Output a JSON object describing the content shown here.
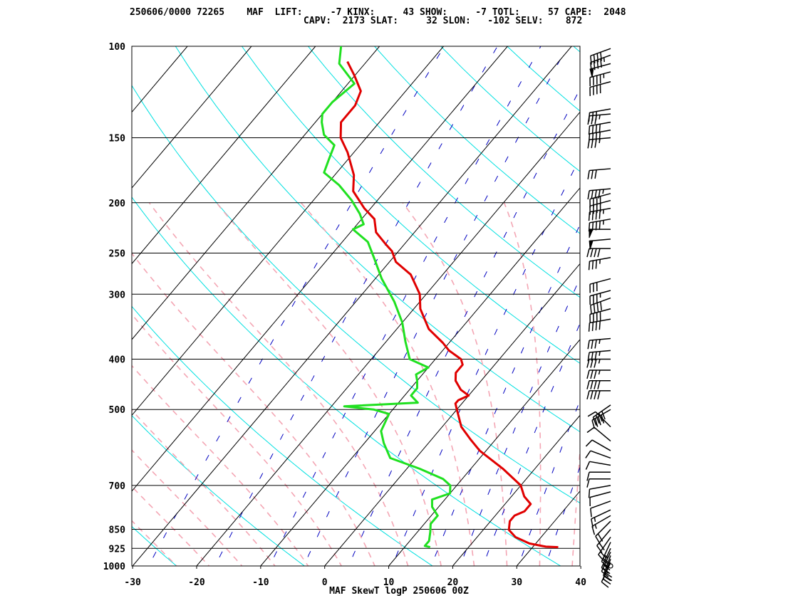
{
  "header": {
    "line1": "250606/0000 72265    MAF  LIFT:     -7 KINX:     43 SHOW:     -7 TOTL:     57 CAPE:  2048",
    "line2": "CAPV:  2173 SLAT:     32 SLON:   -102 SELV:    872"
  },
  "footer": "MAF SkewT logP 250606 00Z",
  "colors": {
    "temperature": "#e00000",
    "dewpoint": "#20e020",
    "dry_adiabat": "#00e0e0",
    "moist_adiabat": "#f4a6b4",
    "mixing_ratio": "#0000c0",
    "isotherm": "#000000",
    "isobar": "#000000",
    "wind_barb": "#000000"
  },
  "chart_data": {
    "type": "line",
    "title": "MAF SkewT logP 250606 00Z",
    "x_scale": "temperature (C), skewed",
    "y_scale": "log",
    "xlim": [
      -30,
      40
    ],
    "ylim": [
      1000,
      100
    ],
    "x_ticks": [
      "-30",
      "-20",
      "-10",
      "0",
      "10",
      "20",
      "30",
      "40"
    ],
    "y_ticks": [
      "100",
      "150",
      "200",
      "250",
      "300",
      "400",
      "500",
      "700",
      "850",
      "925",
      "1000"
    ],
    "pressure_levels": [
      100,
      150,
      200,
      250,
      300,
      400,
      500,
      700,
      850,
      925,
      1000
    ],
    "series": [
      {
        "kind": "temperature",
        "points": [
          [
            920,
            34
          ],
          [
            918,
            32
          ],
          [
            905,
            29
          ],
          [
            880,
            26
          ],
          [
            852,
            24
          ],
          [
            820,
            23
          ],
          [
            800,
            23
          ],
          [
            785,
            24
          ],
          [
            760,
            24
          ],
          [
            735,
            22
          ],
          [
            700,
            20
          ],
          [
            650,
            15
          ],
          [
            600,
            9
          ],
          [
            570,
            6
          ],
          [
            540,
            3
          ],
          [
            500,
            0
          ],
          [
            487,
            -1
          ],
          [
            480,
            -1
          ],
          [
            470,
            0
          ],
          [
            458,
            -2
          ],
          [
            440,
            -4
          ],
          [
            425,
            -5
          ],
          [
            410,
            -5
          ],
          [
            400,
            -6
          ],
          [
            385,
            -9
          ],
          [
            372,
            -11
          ],
          [
            350,
            -15
          ],
          [
            320,
            -19
          ],
          [
            300,
            -21
          ],
          [
            275,
            -25
          ],
          [
            260,
            -29
          ],
          [
            248,
            -31
          ],
          [
            240,
            -33
          ],
          [
            228,
            -36
          ],
          [
            215,
            -38
          ],
          [
            205,
            -41
          ],
          [
            190,
            -45
          ],
          [
            177,
            -47
          ],
          [
            160,
            -51
          ],
          [
            150,
            -54
          ],
          [
            140,
            -56
          ],
          [
            130,
            -56
          ],
          [
            122,
            -57
          ],
          [
            114,
            -60
          ],
          [
            107,
            -63
          ]
        ]
      },
      {
        "kind": "dewpoint",
        "points": [
          [
            920,
            14
          ],
          [
            915,
            13
          ],
          [
            895,
            13
          ],
          [
            860,
            12
          ],
          [
            830,
            11
          ],
          [
            800,
            11
          ],
          [
            770,
            9
          ],
          [
            745,
            8
          ],
          [
            725,
            10
          ],
          [
            700,
            9
          ],
          [
            680,
            7
          ],
          [
            650,
            2
          ],
          [
            620,
            -4
          ],
          [
            580,
            -7
          ],
          [
            550,
            -9
          ],
          [
            510,
            -10
          ],
          [
            500,
            -13
          ],
          [
            493,
            -18
          ],
          [
            485,
            -7
          ],
          [
            470,
            -9
          ],
          [
            455,
            -9
          ],
          [
            440,
            -10
          ],
          [
            428,
            -11
          ],
          [
            415,
            -10
          ],
          [
            400,
            -14
          ],
          [
            370,
            -17
          ],
          [
            340,
            -20
          ],
          [
            310,
            -24
          ],
          [
            280,
            -29
          ],
          [
            255,
            -33
          ],
          [
            238,
            -36
          ],
          [
            225,
            -40
          ],
          [
            220,
            -39
          ],
          [
            210,
            -41
          ],
          [
            198,
            -44
          ],
          [
            185,
            -48
          ],
          [
            175,
            -52
          ],
          [
            165,
            -53
          ],
          [
            155,
            -54
          ],
          [
            148,
            -57
          ],
          [
            140,
            -59
          ],
          [
            135,
            -60
          ],
          [
            128,
            -60
          ],
          [
            118,
            -59
          ],
          [
            108,
            -64
          ],
          [
            100,
            -66
          ]
        ]
      }
    ],
    "wind_barbs": [
      [
        1000,
        0,
        0
      ],
      [
        985,
        205,
        15
      ],
      [
        970,
        200,
        20
      ],
      [
        955,
        200,
        20
      ],
      [
        940,
        205,
        25
      ],
      [
        925,
        205,
        25
      ],
      [
        900,
        205,
        25
      ],
      [
        880,
        215,
        20
      ],
      [
        850,
        220,
        20
      ],
      [
        820,
        225,
        20
      ],
      [
        800,
        240,
        15
      ],
      [
        780,
        245,
        15
      ],
      [
        750,
        250,
        10
      ],
      [
        720,
        255,
        10
      ],
      [
        700,
        260,
        10
      ],
      [
        680,
        270,
        10
      ],
      [
        660,
        270,
        10
      ],
      [
        640,
        280,
        10
      ],
      [
        620,
        290,
        10
      ],
      [
        600,
        300,
        10
      ],
      [
        575,
        310,
        10
      ],
      [
        540,
        315,
        10
      ],
      [
        500,
        240,
        40
      ],
      [
        490,
        235,
        40
      ],
      [
        460,
        270,
        40
      ],
      [
        440,
        270,
        40
      ],
      [
        420,
        270,
        35
      ],
      [
        400,
        270,
        35
      ],
      [
        385,
        265,
        35
      ],
      [
        365,
        265,
        35
      ],
      [
        335,
        260,
        40
      ],
      [
        320,
        255,
        40
      ],
      [
        305,
        250,
        40
      ],
      [
        295,
        255,
        35
      ],
      [
        280,
        255,
        30
      ],
      [
        255,
        260,
        35
      ],
      [
        245,
        270,
        40
      ],
      [
        235,
        265,
        50
      ],
      [
        225,
        270,
        50
      ],
      [
        215,
        260,
        45
      ],
      [
        205,
        260,
        45
      ],
      [
        198,
        255,
        40
      ],
      [
        192,
        255,
        40
      ],
      [
        188,
        265,
        45
      ],
      [
        172,
        265,
        30
      ],
      [
        150,
        265,
        35
      ],
      [
        145,
        260,
        40
      ],
      [
        140,
        260,
        40
      ],
      [
        135,
        265,
        35
      ],
      [
        132,
        260,
        30
      ],
      [
        117,
        255,
        40
      ],
      [
        112,
        255,
        45
      ],
      [
        108,
        255,
        50
      ],
      [
        104,
        250,
        45
      ],
      [
        101,
        250,
        40
      ]
    ]
  }
}
